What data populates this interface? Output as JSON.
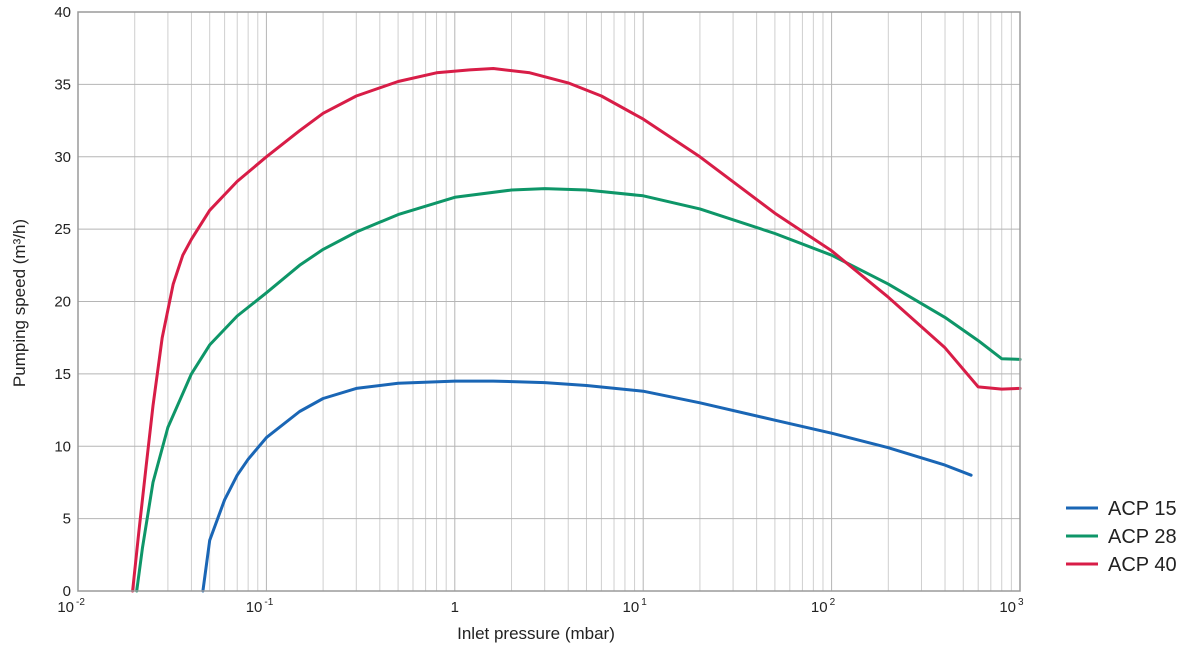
{
  "chart_data": {
    "type": "line",
    "x_scale": "log",
    "xlim": [
      0.01,
      1000
    ],
    "ylim": [
      0,
      40
    ],
    "grid": true,
    "legend_position": "bottom-right",
    "xlabel": "Inlet pressure (mbar)",
    "ylabel": "Pumping speed (m³/h)",
    "y_ticks": [
      0,
      5,
      10,
      15,
      20,
      25,
      30,
      35,
      40
    ],
    "x_ticks": [
      {
        "value": 0.01,
        "base": "10",
        "exp": "-2"
      },
      {
        "value": 0.1,
        "base": "10",
        "exp": "-1"
      },
      {
        "value": 1,
        "base": "1",
        "exp": ""
      },
      {
        "value": 10,
        "base": "10",
        "exp": "1"
      },
      {
        "value": 100,
        "base": "10",
        "exp": "2"
      },
      {
        "value": 1000,
        "base": "10",
        "exp": "3"
      }
    ],
    "series": [
      {
        "name": "ACP 15",
        "color": "#1a66b5",
        "points": [
          [
            0.046,
            0
          ],
          [
            0.05,
            3.5
          ],
          [
            0.06,
            6.3
          ],
          [
            0.07,
            8.0
          ],
          [
            0.08,
            9.1
          ],
          [
            0.1,
            10.6
          ],
          [
            0.15,
            12.4
          ],
          [
            0.2,
            13.3
          ],
          [
            0.3,
            14.0
          ],
          [
            0.5,
            14.35
          ],
          [
            1.0,
            14.5
          ],
          [
            1.6,
            14.5
          ],
          [
            3.0,
            14.4
          ],
          [
            5.0,
            14.2
          ],
          [
            10,
            13.8
          ],
          [
            20,
            13.0
          ],
          [
            50,
            11.8
          ],
          [
            100,
            10.9
          ],
          [
            200,
            9.9
          ],
          [
            400,
            8.7
          ],
          [
            550,
            8.0
          ]
        ]
      },
      {
        "name": "ACP 28",
        "color": "#0e9668",
        "points": [
          [
            0.0205,
            0
          ],
          [
            0.022,
            3.0
          ],
          [
            0.025,
            7.5
          ],
          [
            0.03,
            11.3
          ],
          [
            0.04,
            15.0
          ],
          [
            0.05,
            17.0
          ],
          [
            0.07,
            19.0
          ],
          [
            0.1,
            20.6
          ],
          [
            0.15,
            22.5
          ],
          [
            0.2,
            23.6
          ],
          [
            0.3,
            24.8
          ],
          [
            0.5,
            26.0
          ],
          [
            1.0,
            27.2
          ],
          [
            2.0,
            27.7
          ],
          [
            3.0,
            27.8
          ],
          [
            5.0,
            27.7
          ],
          [
            10,
            27.3
          ],
          [
            20,
            26.4
          ],
          [
            50,
            24.7
          ],
          [
            100,
            23.2
          ],
          [
            200,
            21.2
          ],
          [
            400,
            18.9
          ],
          [
            600,
            17.3
          ],
          [
            800,
            16.05
          ],
          [
            1000,
            16.0
          ]
        ]
      },
      {
        "name": "ACP 40",
        "color": "#d81d47",
        "points": [
          [
            0.0195,
            0
          ],
          [
            0.021,
            4.0
          ],
          [
            0.023,
            8.6
          ],
          [
            0.025,
            12.8
          ],
          [
            0.028,
            17.5
          ],
          [
            0.032,
            21.2
          ],
          [
            0.036,
            23.2
          ],
          [
            0.04,
            24.3
          ],
          [
            0.05,
            26.3
          ],
          [
            0.07,
            28.3
          ],
          [
            0.1,
            30.0
          ],
          [
            0.15,
            31.8
          ],
          [
            0.2,
            33.0
          ],
          [
            0.3,
            34.2
          ],
          [
            0.5,
            35.2
          ],
          [
            0.8,
            35.8
          ],
          [
            1.2,
            36.0
          ],
          [
            1.6,
            36.1
          ],
          [
            2.5,
            35.8
          ],
          [
            4.0,
            35.1
          ],
          [
            6.0,
            34.2
          ],
          [
            10,
            32.6
          ],
          [
            20,
            30.0
          ],
          [
            50,
            26.1
          ],
          [
            100,
            23.5
          ],
          [
            200,
            20.3
          ],
          [
            400,
            16.8
          ],
          [
            600,
            14.1
          ],
          [
            800,
            13.95
          ],
          [
            1000,
            14.0
          ]
        ]
      }
    ]
  }
}
